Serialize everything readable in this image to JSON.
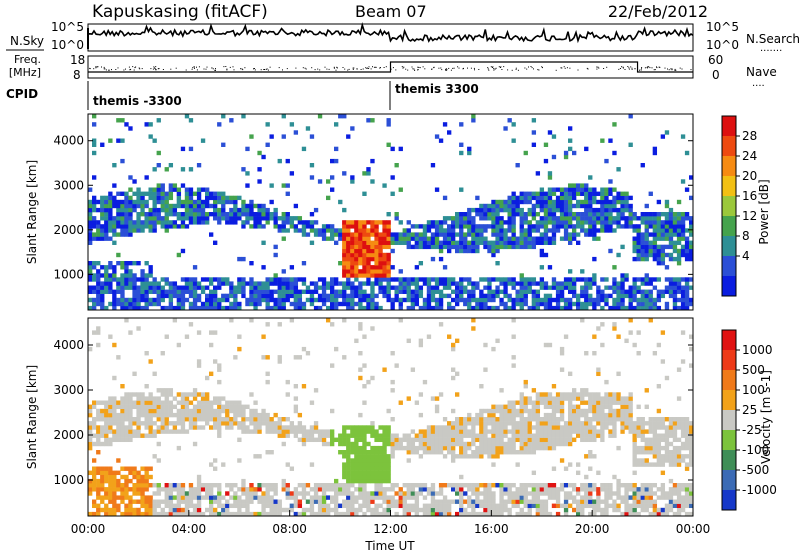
{
  "header": {
    "station": "Kapuskasing (fitACF)",
    "beam": "Beam 07",
    "date": "22/Feb/2012"
  },
  "noise_panel": {
    "left_label": "N.Sky",
    "right_label": "N.Search",
    "left_ticks": [
      "10^5",
      "10^0"
    ],
    "right_ticks": [
      "10^5",
      "10^0"
    ]
  },
  "freq_panel": {
    "left_label_1": "Freq.",
    "left_label_2": "[MHz]",
    "right_label": "Nave",
    "left_ticks": [
      "18",
      "8"
    ],
    "right_ticks": [
      "60",
      "0"
    ]
  },
  "cpid": {
    "label": "CPID",
    "segments": [
      {
        "name": "themis -3300",
        "start_hour": 0
      },
      {
        "name": "themis 3300",
        "start_hour": 12
      }
    ]
  },
  "chart_data": [
    {
      "type": "heatmap",
      "name": "power",
      "ylabel": "Slant Range [km]",
      "yticks": [
        1000,
        2000,
        3000,
        4000
      ],
      "ylim": [
        200,
        4600
      ],
      "xlim": [
        0,
        24
      ],
      "colorbar": {
        "label": "Power [dB]",
        "ticks": [
          "28",
          "24",
          "20",
          "16",
          "12",
          "8",
          "4"
        ],
        "colors": [
          "#0a1de0",
          "#2b4fd6",
          "#2e8f95",
          "#45a34d",
          "#9bc83b",
          "#f2c014",
          "#f68b12",
          "#ee4a10",
          "#dd1010"
        ]
      }
    },
    {
      "type": "heatmap",
      "name": "velocity",
      "ylabel": "Slant Range [km]",
      "xlabel": "Time UT",
      "yticks": [
        1000,
        2000,
        3000,
        4000
      ],
      "ylim": [
        200,
        4600
      ],
      "xlim": [
        0,
        24
      ],
      "xticks": [
        "00:00",
        "04:00",
        "08:00",
        "12:00",
        "16:00",
        "20:00",
        "00:00"
      ],
      "colorbar": {
        "label": "Velocity [m s-1]",
        "ticks": [
          "1000",
          "500",
          "100",
          "25",
          "-25",
          "-100",
          "-500",
          "-1000"
        ],
        "colors": [
          "#1638c9",
          "#3b6bb5",
          "#3f8e57",
          "#7cc33c",
          "#c9c9c4",
          "#f2a21a",
          "#f07a1a",
          "#ee3a18",
          "#e01212"
        ]
      }
    }
  ]
}
